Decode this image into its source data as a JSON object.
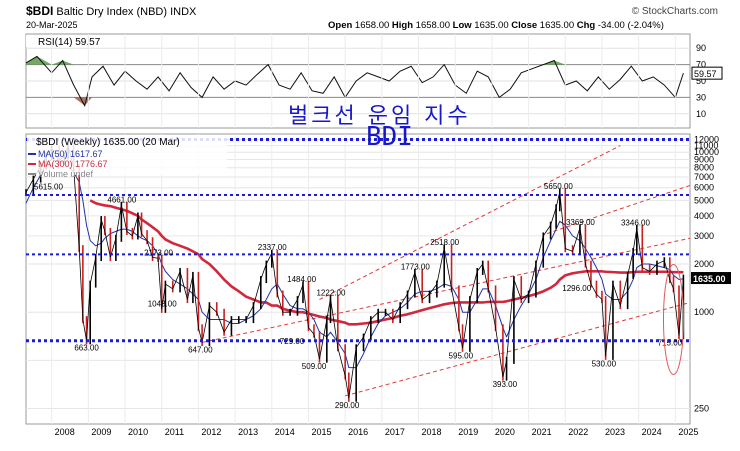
{
  "header": {
    "symbol": "$BDI",
    "name": "Baltic Dry Index (NBD)",
    "exchange": "INDX",
    "date": "20-Mar-2025",
    "open_label": "Open",
    "open": "1658.00",
    "high_label": "High",
    "high": "1658.00",
    "low_label": "Low",
    "low": "1635.00",
    "close_label": "Close",
    "close": "1635.00",
    "chg_label": "Chg",
    "chg": "-34.00 (-2.04%)",
    "brand": "© StockCharts.com"
  },
  "overlay": {
    "korean_title": "벌크선 운임 지수",
    "korean_subtitle": "BDI"
  },
  "rsi_panel": {
    "label": "RSI(14) 59.57",
    "last_value": "59.57",
    "ticks": [
      "90",
      "70",
      "50",
      "30",
      "10"
    ],
    "tick_values": [
      90,
      70,
      50,
      30,
      10
    ],
    "overbought": 70,
    "oversold": 30
  },
  "price_panel": {
    "label": "$BDI (Weekly) 1635.00 (20 Mar)",
    "legend": [
      {
        "text": "MA(50) 1617.67",
        "color": "#2233aa"
      },
      {
        "text": "MA(300) 1776.67",
        "color": "#d0283c"
      },
      {
        "text": "Volume undef",
        "color": "#888888"
      }
    ],
    "last_price": "1635.00",
    "y_ticks": [
      "12000",
      "11000",
      "10000",
      "9000",
      "8000",
      "7000",
      "6000",
      "5000",
      "4000",
      "3000",
      "2000",
      "1000",
      "250"
    ],
    "y_tick_values": [
      12000,
      11000,
      10000,
      9000,
      8000,
      7000,
      6000,
      5000,
      4000,
      3000,
      2000,
      1000,
      250
    ],
    "extra_ticks": [
      {
        "v": 500,
        "label": ""
      }
    ],
    "ylim": [
      200,
      13000
    ],
    "scale": "log",
    "x_labels": [
      "2008",
      "2009",
      "2010",
      "2011",
      "2012",
      "2013",
      "2014",
      "2015",
      "2016",
      "2017",
      "2018",
      "2019",
      "2020",
      "2021",
      "2022",
      "2023",
      "2024",
      "2025"
    ],
    "x_values": [
      2008,
      2009,
      2010,
      2011,
      2012,
      2013,
      2014,
      2015,
      2016,
      2017,
      2018,
      2019,
      2020,
      2021,
      2022,
      2023,
      2024,
      2025
    ],
    "xlim": [
      2007.3,
      2025.4
    ],
    "horizontal_levels": [
      12000,
      5400,
      2300,
      663
    ],
    "annotations": [
      {
        "label": "5615.00",
        "x": 2007.9,
        "y": 5615
      },
      {
        "label": "663.00",
        "x": 2009.0,
        "y": 663
      },
      {
        "label": "4661.00",
        "x": 2009.9,
        "y": 4661
      },
      {
        "label": "2173.00",
        "x": 2010.9,
        "y": 2173
      },
      {
        "label": "1043.00",
        "x": 2011.0,
        "y": 1043
      },
      {
        "label": "647.00",
        "x": 2012.1,
        "y": 647
      },
      {
        "label": "2337.00",
        "x": 2014.0,
        "y": 2337
      },
      {
        "label": "729.00",
        "x": 2014.6,
        "y": 729
      },
      {
        "label": "1484.00",
        "x": 2014.8,
        "y": 1484
      },
      {
        "label": "1222.00",
        "x": 2015.6,
        "y": 1222
      },
      {
        "label": "509.00",
        "x": 2015.2,
        "y": 509
      },
      {
        "label": "290.00",
        "x": 2016.1,
        "y": 290
      },
      {
        "label": "1773.00",
        "x": 2017.9,
        "y": 1773
      },
      {
        "label": "2518.00",
        "x": 2018.7,
        "y": 2518
      },
      {
        "label": "595.00",
        "x": 2019.2,
        "y": 595
      },
      {
        "label": "393.00",
        "x": 2020.4,
        "y": 393
      },
      {
        "label": "5650.00",
        "x": 2021.8,
        "y": 5650
      },
      {
        "label": "3369.00",
        "x": 2022.4,
        "y": 3369
      },
      {
        "label": "1296.00",
        "x": 2022.3,
        "y": 1296
      },
      {
        "label": "530.00",
        "x": 2023.1,
        "y": 530
      },
      {
        "label": "3346.00",
        "x": 2023.9,
        "y": 3346
      },
      {
        "label": "715.00",
        "x": 2024.9,
        "y": 715
      }
    ],
    "channel_lines": [
      {
        "x1": 2012.1,
        "y1": 647,
        "x2": 2025.4,
        "y2": 2900
      },
      {
        "x1": 2016.0,
        "y1": 300,
        "x2": 2025.4,
        "y2": 1150
      },
      {
        "x1": 2015.3,
        "y1": 1200,
        "x2": 2023.5,
        "y2": 11000
      },
      {
        "x1": 2021.5,
        "y1": 3100,
        "x2": 2025.4,
        "y2": 6200
      }
    ]
  },
  "chart_data": {
    "type": "line",
    "title": "$BDI Baltic Dry Index (NBD) INDX — Weekly",
    "x": [
      2007.3,
      2007.5,
      2007.7,
      2007.85,
      2008.0,
      2008.2,
      2008.35,
      2008.45,
      2008.6,
      2008.75,
      2008.85,
      2008.95,
      2009.05,
      2009.2,
      2009.35,
      2009.45,
      2009.6,
      2009.75,
      2009.9,
      2010.05,
      2010.2,
      2010.35,
      2010.45,
      2010.6,
      2010.75,
      2010.9,
      2011.0,
      2011.1,
      2011.3,
      2011.5,
      2011.7,
      2011.85,
      2012.0,
      2012.1,
      2012.3,
      2012.5,
      2012.7,
      2012.9,
      2013.1,
      2013.3,
      2013.5,
      2013.7,
      2013.85,
      2014.0,
      2014.15,
      2014.3,
      2014.5,
      2014.7,
      2014.85,
      2015.0,
      2015.15,
      2015.3,
      2015.5,
      2015.6,
      2015.8,
      2016.0,
      2016.1,
      2016.3,
      2016.5,
      2016.7,
      2016.9,
      2017.1,
      2017.3,
      2017.5,
      2017.7,
      2017.9,
      2018.1,
      2018.3,
      2018.5,
      2018.7,
      2018.9,
      2019.1,
      2019.2,
      2019.4,
      2019.6,
      2019.75,
      2019.9,
      2020.1,
      2020.3,
      2020.4,
      2020.6,
      2020.8,
      2021.0,
      2021.2,
      2021.4,
      2021.6,
      2021.75,
      2021.85,
      2022.0,
      2022.2,
      2022.4,
      2022.55,
      2022.7,
      2022.85,
      2023.0,
      2023.1,
      2023.3,
      2023.5,
      2023.7,
      2023.85,
      2023.95,
      2024.1,
      2024.3,
      2024.5,
      2024.7,
      2024.85,
      2024.95,
      2025.1,
      2025.22
    ],
    "series": [
      {
        "name": "$BDI",
        "values": [
          5600,
          6800,
          8200,
          9500,
          10500,
          8800,
          9500,
          11000,
          8000,
          2500,
          900,
          663,
          1500,
          2200,
          3800,
          3200,
          2200,
          2900,
          4661,
          3200,
          3000,
          4000,
          3100,
          2800,
          2200,
          2173,
          1043,
          1500,
          1400,
          1800,
          1200,
          1700,
          800,
          647,
          1100,
          1000,
          750,
          900,
          900,
          900,
          1100,
          1600,
          2000,
          2337,
          1300,
          1000,
          1000,
          1200,
          1484,
          800,
          729,
          509,
          900,
          1222,
          600,
          400,
          290,
          600,
          700,
          900,
          1000,
          1000,
          900,
          1100,
          1300,
          1773,
          1200,
          1300,
          1500,
          2518,
          1400,
          800,
          595,
          1200,
          1800,
          2000,
          1400,
          800,
          393,
          500,
          1600,
          1200,
          1300,
          2000,
          3000,
          3500,
          4500,
          5650,
          2500,
          2400,
          3369,
          2000,
          1500,
          1296,
          1200,
          530,
          1500,
          1100,
          1700,
          2400,
          3346,
          1900,
          1800,
          2000,
          2100,
          1600,
          1400,
          715,
          1635
        ]
      },
      {
        "name": "MA(50)",
        "values": [
          4800,
          6000,
          7200,
          8500,
          9000,
          8800,
          8500,
          8200,
          7500,
          6500,
          5000,
          3500,
          2800,
          2600,
          2700,
          2900,
          3100,
          3200,
          3300,
          3300,
          3200,
          3000,
          2900,
          2800,
          2600,
          2300,
          2000,
          1800,
          1600,
          1500,
          1400,
          1300,
          1200,
          1000,
          900,
          900,
          900,
          850,
          850,
          900,
          950,
          1050,
          1200,
          1400,
          1500,
          1300,
          1100,
          1050,
          1050,
          1000,
          900,
          750,
          700,
          750,
          650,
          550,
          450,
          450,
          550,
          700,
          850,
          950,
          1000,
          1050,
          1150,
          1300,
          1350,
          1350,
          1400,
          1500,
          1450,
          1200,
          1000,
          1000,
          1200,
          1400,
          1400,
          1100,
          800,
          700,
          900,
          1100,
          1300,
          1600,
          2200,
          2800,
          3300,
          3700,
          3500,
          3000,
          2800,
          2500,
          2200,
          1900,
          1600,
          1300,
          1200,
          1200,
          1350,
          1600,
          1900,
          2000,
          2000,
          1950,
          1900,
          1850,
          1700,
          1600,
          1617.67
        ]
      },
      {
        "name": "MA(300)",
        "values": [
          null,
          null,
          null,
          null,
          null,
          null,
          null,
          null,
          null,
          null,
          null,
          null,
          5000,
          4800,
          4700,
          4650,
          4600,
          4500,
          4400,
          4300,
          4150,
          4000,
          3800,
          3600,
          3400,
          3200,
          3000,
          2850,
          2700,
          2600,
          2500,
          2400,
          2300,
          2150,
          2000,
          1800,
          1600,
          1450,
          1350,
          1250,
          1200,
          1150,
          1150,
          1100,
          1100,
          1050,
          1020,
          1000,
          1000,
          980,
          960,
          940,
          920,
          900,
          880,
          860,
          840,
          840,
          850,
          860,
          880,
          900,
          920,
          950,
          970,
          1000,
          1030,
          1060,
          1090,
          1120,
          1140,
          1150,
          1150,
          1150,
          1150,
          1150,
          1160,
          1160,
          1160,
          1170,
          1200,
          1230,
          1260,
          1300,
          1350,
          1420,
          1500,
          1600,
          1700,
          1750,
          1780,
          1800,
          1800,
          1800,
          1800,
          1790,
          1780,
          1770,
          1770,
          1780,
          1790,
          1790,
          1790,
          1790,
          1790,
          1785,
          1780,
          1778,
          1776.67
        ]
      }
    ],
    "xlim": [
      2007.3,
      2025.4
    ],
    "ylim": [
      200,
      13000
    ],
    "yscale": "log",
    "rsi": {
      "name": "RSI(14)",
      "x": [
        2007.3,
        2007.6,
        2008.0,
        2008.3,
        2008.6,
        2008.9,
        2009.1,
        2009.4,
        2009.7,
        2010.0,
        2010.3,
        2010.6,
        2010.9,
        2011.2,
        2011.5,
        2011.8,
        2012.1,
        2012.4,
        2012.7,
        2013.0,
        2013.3,
        2013.6,
        2013.9,
        2014.2,
        2014.5,
        2014.8,
        2015.1,
        2015.4,
        2015.7,
        2016.0,
        2016.3,
        2016.6,
        2016.9,
        2017.2,
        2017.5,
        2017.8,
        2018.1,
        2018.4,
        2018.7,
        2019.0,
        2019.3,
        2019.6,
        2019.9,
        2020.2,
        2020.5,
        2020.8,
        2021.1,
        2021.4,
        2021.7,
        2022.0,
        2022.3,
        2022.6,
        2022.9,
        2023.2,
        2023.5,
        2023.8,
        2024.1,
        2024.4,
        2024.7,
        2025.0,
        2025.22
      ],
      "values": [
        72,
        80,
        60,
        75,
        45,
        20,
        55,
        68,
        45,
        62,
        50,
        40,
        55,
        38,
        60,
        42,
        30,
        55,
        40,
        50,
        45,
        58,
        70,
        45,
        40,
        60,
        38,
        35,
        55,
        30,
        50,
        60,
        55,
        50,
        62,
        68,
        48,
        55,
        70,
        45,
        35,
        62,
        55,
        30,
        40,
        60,
        65,
        70,
        75,
        45,
        50,
        38,
        55,
        40,
        52,
        68,
        50,
        55,
        45,
        30,
        59.57
      ]
    }
  }
}
